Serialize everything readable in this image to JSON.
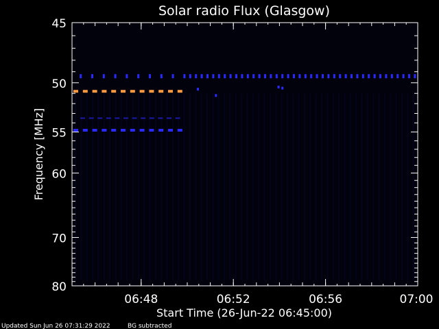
{
  "chart_data": {
    "type": "heatmap",
    "title": "Solar radio Flux (Glasgow)",
    "xlabel": "Start Time (26-Jun-22 06:45:00)",
    "ylabel": "Frequency [MHz]",
    "x_range": [
      "06:45",
      "07:00"
    ],
    "x_ticks": [
      "06:48",
      "06:52",
      "06:56",
      "07:00"
    ],
    "y_range": [
      45,
      80
    ],
    "y_ticks": [
      45,
      50,
      55,
      60,
      70,
      80
    ],
    "y_tick_labels": [
      "45",
      "50",
      "55",
      "60",
      "70",
      "80"
    ],
    "bands": [
      {
        "freq_mhz": 49.4,
        "start": "06:45:20",
        "end": "07:00:00",
        "color": "#2a2aff",
        "pattern": "dashed-sparse-then-dense",
        "dense_from": "06:49:50"
      },
      {
        "freq_mhz": 50.8,
        "start": "06:45:00",
        "end": "06:49:50",
        "color": "#ff9a40",
        "pattern": "dashed"
      },
      {
        "freq_mhz": 53.5,
        "start": "06:45:00",
        "end": "06:49:50",
        "color": "#1a1aaa",
        "pattern": "dashed-thin"
      },
      {
        "freq_mhz": 54.8,
        "start": "06:45:00",
        "end": "06:49:50",
        "color": "#2a2aff",
        "pattern": "dashed"
      }
    ],
    "background_color": "#02020d"
  },
  "footer": {
    "updated": "Updated Sun Jun 26 07:31:29 2022",
    "note": "BG subtracted"
  }
}
